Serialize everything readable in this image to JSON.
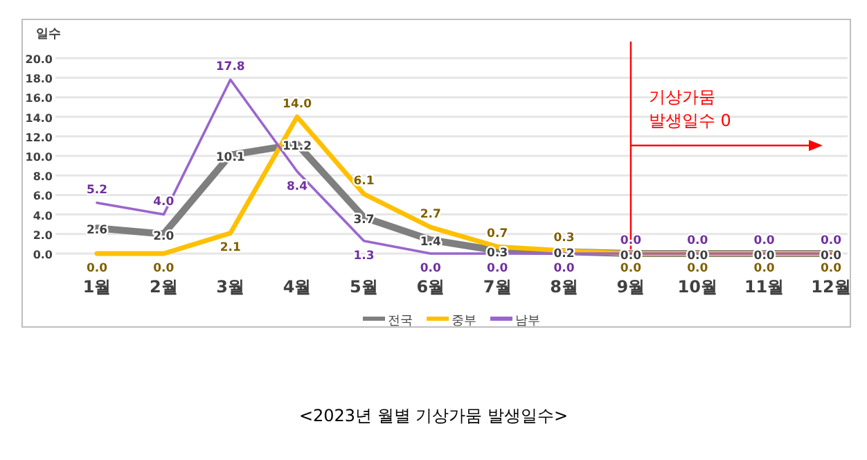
{
  "chart_data": {
    "type": "line",
    "title": "<2023년 월별 기상가뭄 발생일수>",
    "ylabel": "일수",
    "categories": [
      "1월",
      "2월",
      "3월",
      "4월",
      "5월",
      "6월",
      "7월",
      "8월",
      "9월",
      "10월",
      "11월",
      "12월"
    ],
    "series": [
      {
        "name": "전국",
        "color": "#7f7f7f",
        "values": [
          2.6,
          2.0,
          10.1,
          11.2,
          3.7,
          1.4,
          0.3,
          0.2,
          0.0,
          0.0,
          0.0,
          0.0
        ],
        "value_labels": [
          "2.6",
          "2.0",
          "10.1",
          "11.2",
          "3.7",
          "1.4",
          "0.3",
          "0.2",
          "0.0",
          "0.0",
          "0.0",
          "0.0"
        ]
      },
      {
        "name": "중부",
        "color": "#ffc000",
        "values": [
          0.0,
          0.0,
          2.1,
          14.0,
          6.1,
          2.7,
          0.7,
          0.3,
          0.0,
          0.0,
          0.0,
          0.0
        ],
        "value_labels": [
          "0.0",
          "0.0",
          "2.1",
          "14.0",
          "6.1",
          "2.7",
          "0.7",
          "0.3",
          "0.0",
          "0.0",
          "0.0",
          "0.0"
        ]
      },
      {
        "name": "남부",
        "color": "#9966cc",
        "values": [
          5.2,
          4.0,
          17.8,
          8.4,
          1.3,
          0.0,
          0.0,
          0.0,
          0.0,
          0.0,
          0.0,
          0.0
        ],
        "value_labels": [
          "5.2",
          "4.0",
          "17.8",
          "8.4",
          "1.3",
          "0.0",
          "0.0",
          "0.0",
          "0.0",
          "0.0",
          "0.0",
          "0.0"
        ]
      }
    ],
    "ylim": [
      0,
      20
    ],
    "yticks": [
      {
        "value": 0,
        "label": "0.0"
      },
      {
        "value": 2,
        "label": "2.0"
      },
      {
        "value": 4,
        "label": "4.0"
      },
      {
        "value": 6,
        "label": "6.0"
      },
      {
        "value": 8,
        "label": "8.0"
      },
      {
        "value": 10,
        "label": "10.0"
      },
      {
        "value": 12,
        "label": "12.0"
      },
      {
        "value": 14,
        "label": "14.0"
      },
      {
        "value": 16,
        "label": "16.0"
      },
      {
        "value": 18,
        "label": "18.0"
      },
      {
        "value": 20,
        "label": "20.0"
      }
    ],
    "grid": "y",
    "legend": "bottom",
    "ref_lines": [
      {
        "axis": "x",
        "value": "9월",
        "label": "기상가뭄\n발생일수 0",
        "color": "#ff0000"
      }
    ]
  }
}
